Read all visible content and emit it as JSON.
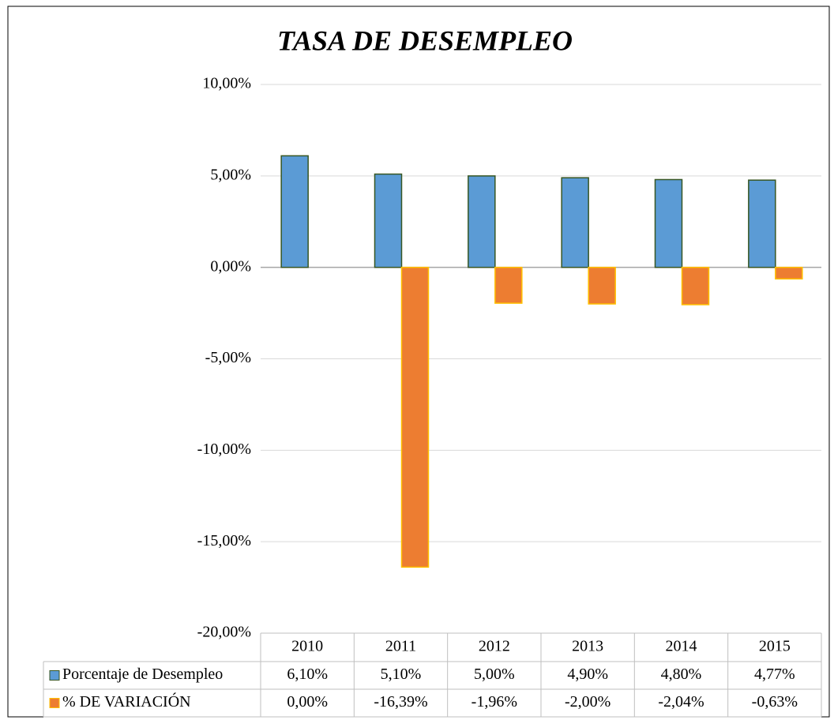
{
  "chart_data": {
    "type": "bar",
    "title": "TASA DE DESEMPLEO",
    "categories": [
      "2010",
      "2011",
      "2012",
      "2013",
      "2014",
      "2015"
    ],
    "series": [
      {
        "name": "Porcentaje de Desempleo",
        "color": "#5b9bd5",
        "values": [
          6.1,
          5.1,
          5.0,
          4.9,
          4.8,
          4.77
        ],
        "value_labels": [
          "6,10%",
          "5,10%",
          "5,00%",
          "4,90%",
          "4,80%",
          "4,77%"
        ]
      },
      {
        "name": "% DE VARIACIÓN",
        "color": "#ed7d31",
        "values": [
          0.0,
          -16.39,
          -1.96,
          -2.0,
          -2.04,
          -0.63
        ],
        "value_labels": [
          "0,00%",
          "-16,39%",
          "-1,96%",
          "-2,00%",
          "-2,04%",
          "-0,63%"
        ]
      }
    ],
    "ylim": [
      -20,
      10
    ],
    "yticks": [
      {
        "value": -20,
        "label": "-20,00%"
      },
      {
        "value": -15,
        "label": "-15,00%"
      },
      {
        "value": -10,
        "label": "-10,00%"
      },
      {
        "value": -5,
        "label": "-5,00%"
      },
      {
        "value": 0,
        "label": "0,00%"
      },
      {
        "value": 5,
        "label": "5,00%"
      },
      {
        "value": 10,
        "label": "10,00%"
      }
    ],
    "grid": true
  }
}
